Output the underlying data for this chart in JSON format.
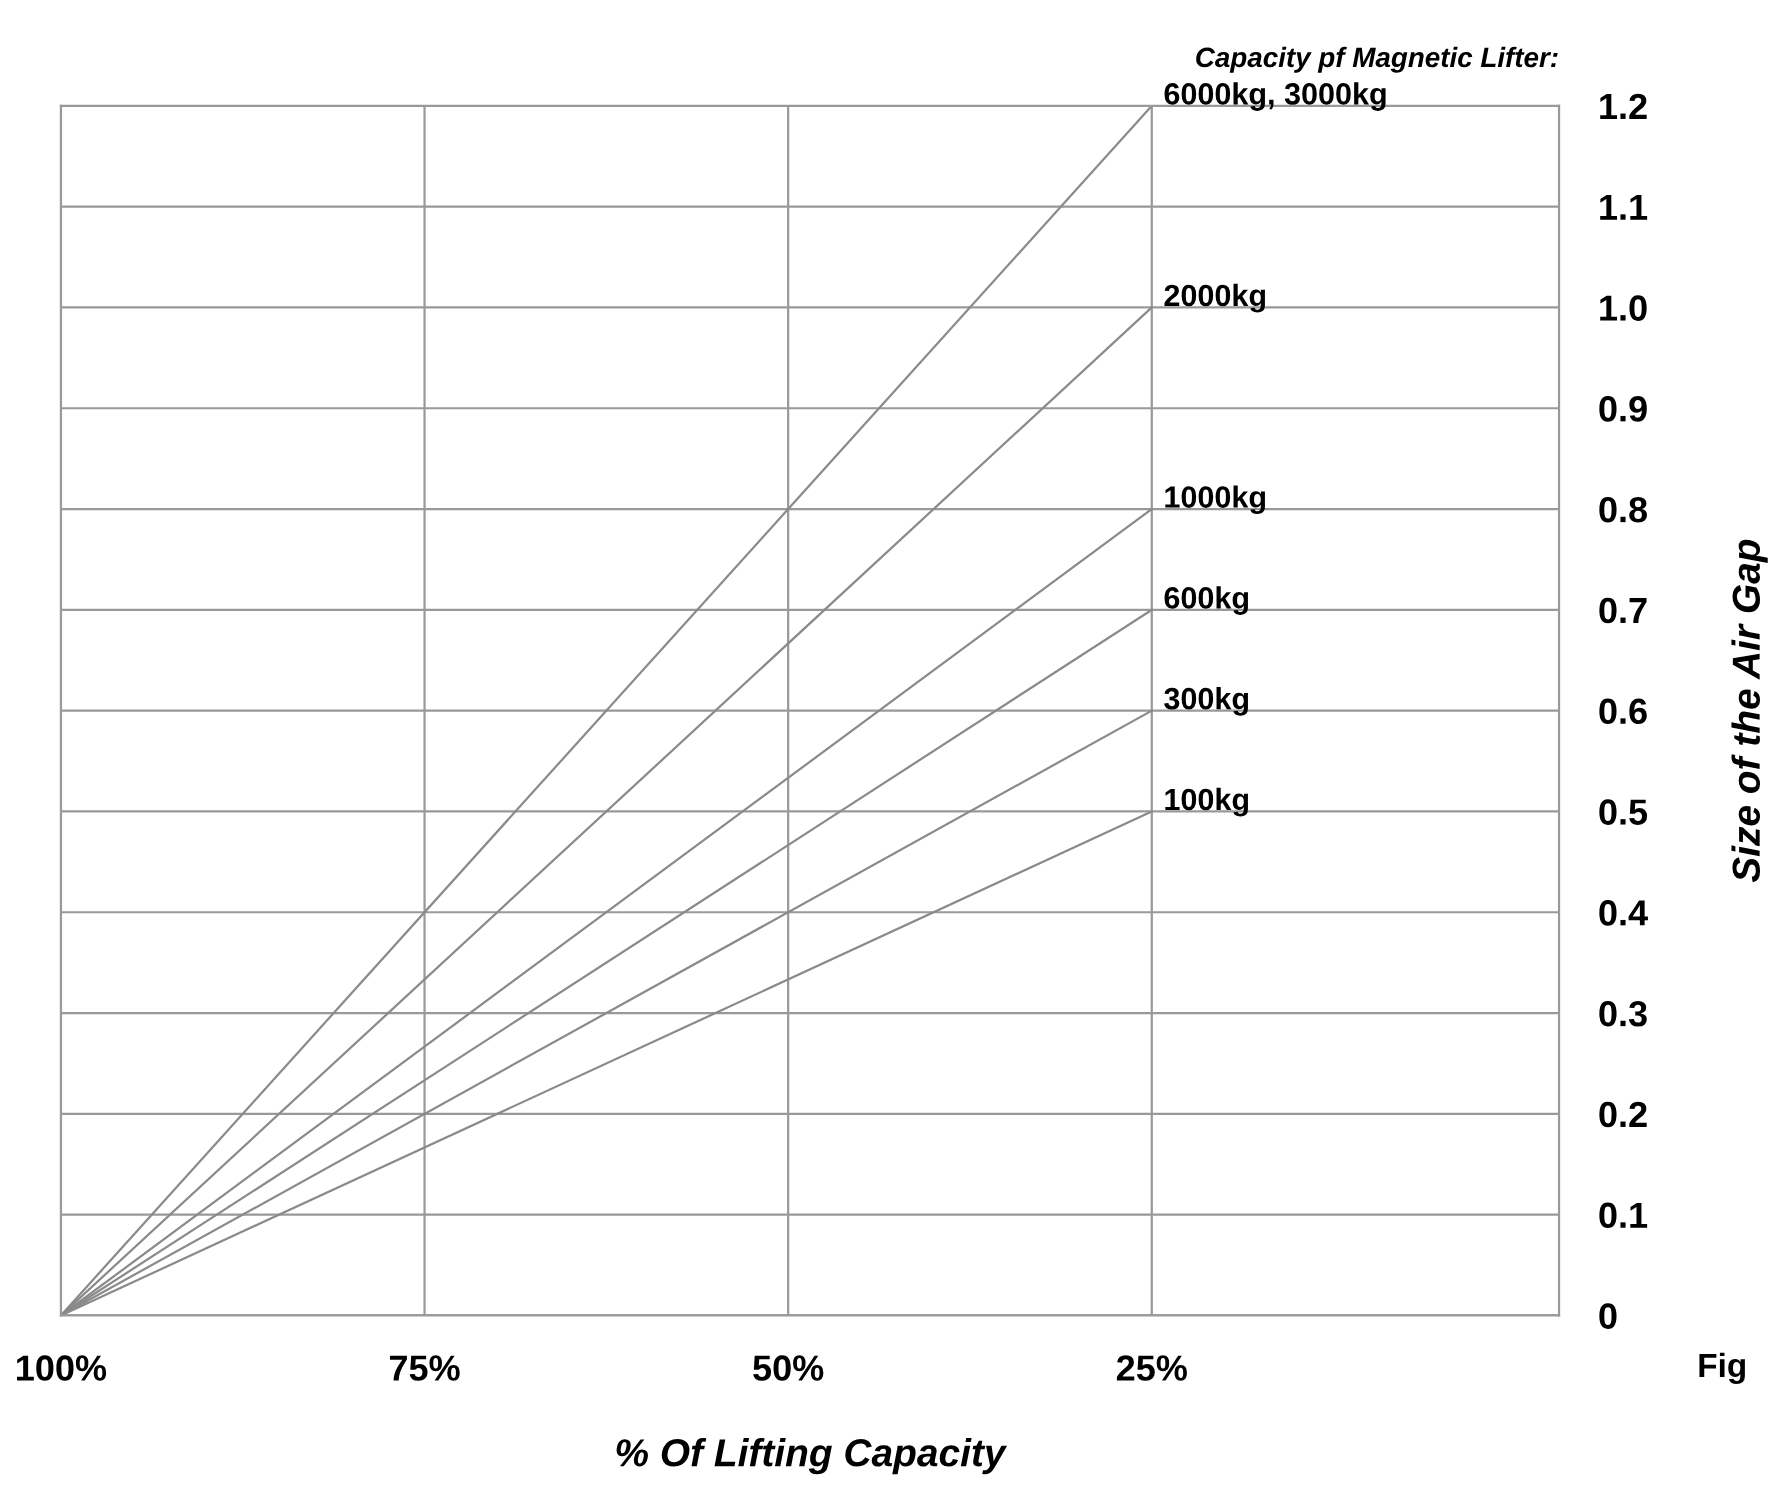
{
  "chart_data": {
    "type": "line",
    "title": "Capacity pf Magnetic Lifter:",
    "xlabel": "% Of Lifting Capacity",
    "ylabel": "Size of the Air Gap",
    "annotations": [
      "Fig"
    ],
    "x": [
      100,
      25
    ],
    "series": [
      {
        "name": "6000kg, 3000kg",
        "color": "#8a8a8a",
        "values": [
          0,
          1.2
        ]
      },
      {
        "name": "2000kg",
        "color": "#8a8a8a",
        "values": [
          0,
          1.0
        ]
      },
      {
        "name": "1000kg",
        "color": "#8a8a8a",
        "values": [
          0,
          0.8
        ]
      },
      {
        "name": "600kg",
        "color": "#8a8a8a",
        "values": [
          0,
          0.7
        ]
      },
      {
        "name": "300kg",
        "color": "#8a8a8a",
        "values": [
          0,
          0.6
        ]
      },
      {
        "name": "100kg",
        "color": "#8a8a8a",
        "values": [
          0,
          0.5
        ]
      }
    ],
    "xlim": [
      100,
      -3
    ],
    "xticks": [
      {
        "value": 100,
        "label": "100%"
      },
      {
        "value": 75,
        "label": "75%"
      },
      {
        "value": 50,
        "label": "50%"
      },
      {
        "value": 25,
        "label": "25%"
      }
    ],
    "ylim": [
      0,
      1.2
    ],
    "yticks": [
      0,
      0.1,
      0.2,
      0.3,
      0.4,
      0.5,
      0.6,
      0.7,
      0.8,
      0.9,
      {
        "value": 1.0,
        "label": "1.0"
      },
      1.1,
      1.2
    ],
    "grid": true,
    "legend": false,
    "marker": "none",
    "line_style": "solid"
  }
}
